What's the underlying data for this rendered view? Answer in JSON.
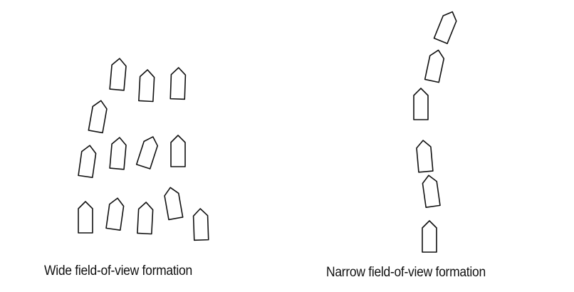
{
  "panels": {
    "wide": {
      "caption": "Wide field-of-view formation",
      "agent_count": 14
    },
    "narrow": {
      "caption": "Narrow field-of-view formation",
      "agent_count": 6
    }
  },
  "colors": {
    "outline": "#111111",
    "background": "#ffffff"
  }
}
